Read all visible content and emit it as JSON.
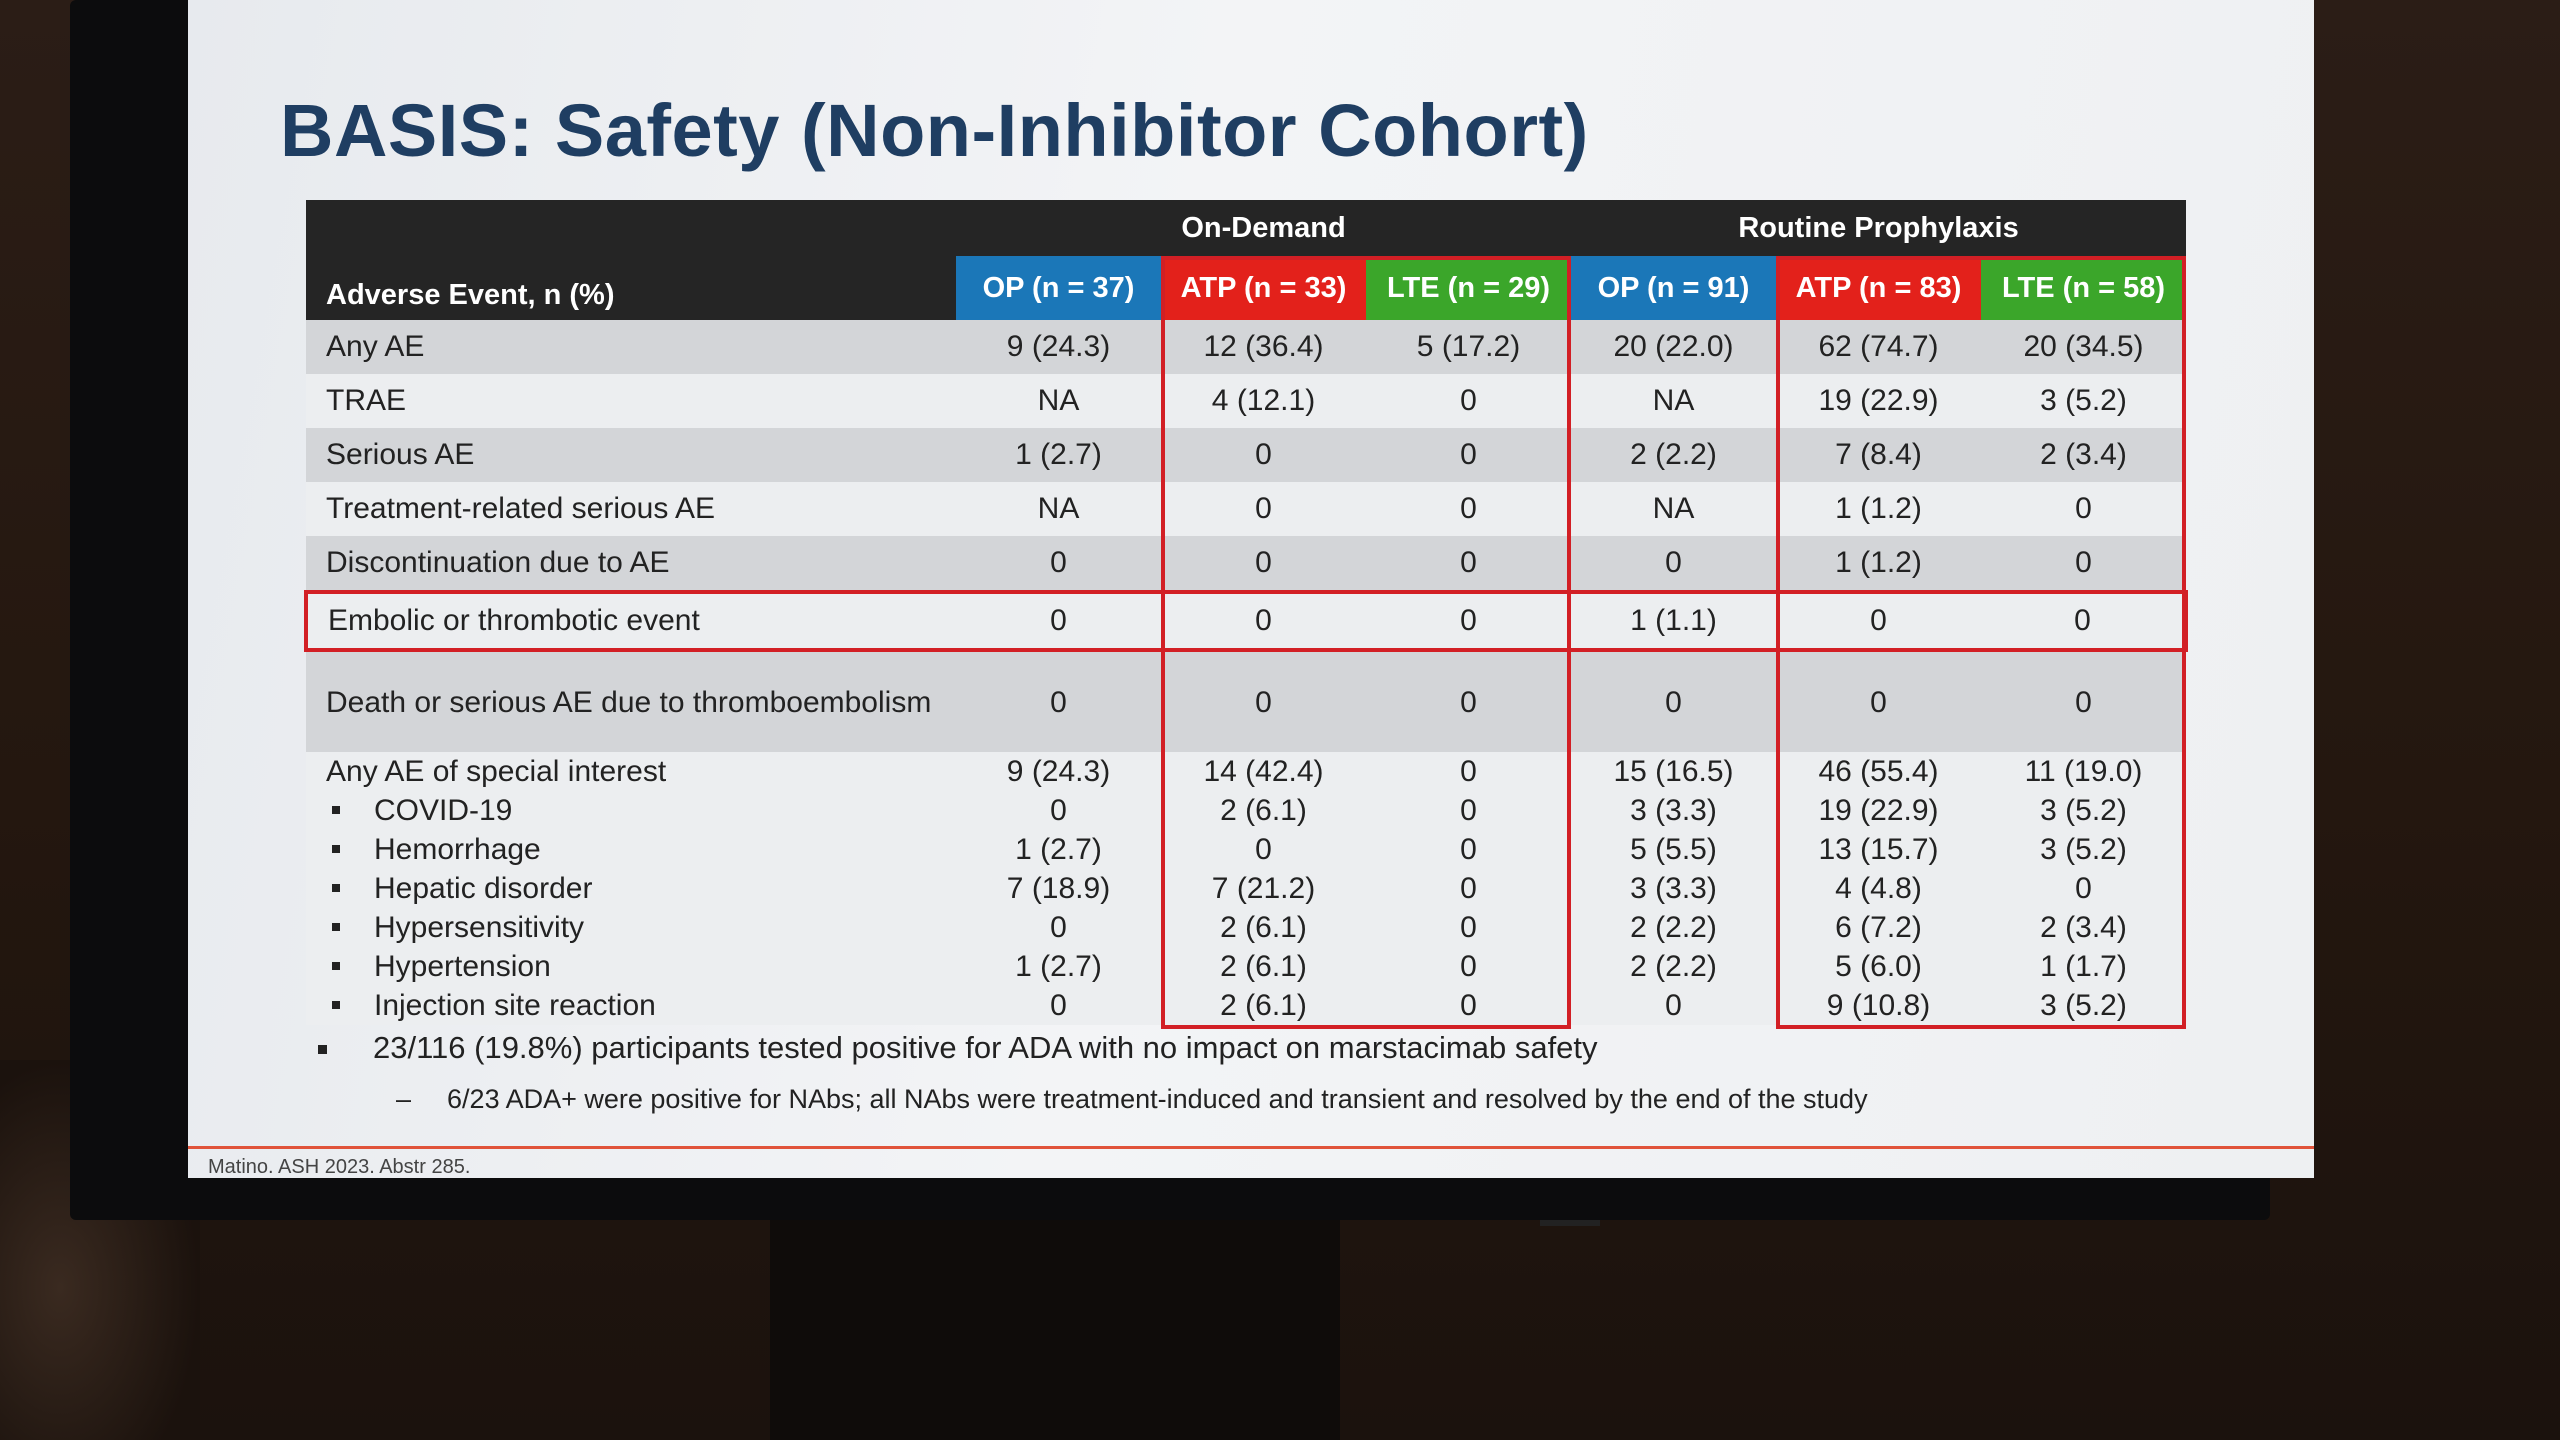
{
  "slide": {
    "title": "BASIS: Safety (Non-Inhibitor Cohort)",
    "table": {
      "group_headers": [
        "On-Demand",
        "Routine Prophylaxis"
      ],
      "row_header": "Adverse Event, n (%)",
      "columns": [
        "OP (n = 37)",
        "ATP (n = 33)",
        "LTE (n = 29)",
        "OP (n = 91)",
        "ATP (n = 83)",
        "LTE (n  = 58)"
      ],
      "rows": [
        {
          "label": "Any AE",
          "values": [
            "9 (24.3)",
            "12 (36.4)",
            "5 (17.2)",
            "20 (22.0)",
            "62 (74.7)",
            "20 (34.5)"
          ]
        },
        {
          "label": "TRAE",
          "values": [
            "NA",
            "4 (12.1)",
            "0",
            "NA",
            "19 (22.9)",
            "3 (5.2)"
          ]
        },
        {
          "label": "Serious AE",
          "values": [
            "1 (2.7)",
            "0",
            "0",
            "2 (2.2)",
            "7 (8.4)",
            "2 (3.4)"
          ]
        },
        {
          "label": "Treatment-related serious AE",
          "values": [
            "NA",
            "0",
            "0",
            "NA",
            "1 (1.2)",
            "0"
          ]
        },
        {
          "label": "Discontinuation due to AE",
          "values": [
            "0",
            "0",
            "0",
            "0",
            "1 (1.2)",
            "0"
          ]
        },
        {
          "label": "Embolic or thrombotic event",
          "values": [
            "0",
            "0",
            "0",
            "1 (1.1)",
            "0",
            "0"
          ]
        },
        {
          "label": "Death or serious AE due to thromboembolism",
          "values": [
            "0",
            "0",
            "0",
            "0",
            "0",
            "0"
          ]
        }
      ],
      "special_interest": {
        "label": "Any AE of special interest",
        "values": [
          "9 (24.3)",
          "14 (42.4)",
          "0",
          "15 (16.5)",
          "46 (55.4)",
          "11 (19.0)"
        ],
        "items": [
          {
            "label": "COVID-19",
            "values": [
              "0",
              "2 (6.1)",
              "0",
              "3 (3.3)",
              "19 (22.9)",
              "3 (5.2)"
            ]
          },
          {
            "label": "Hemorrhage",
            "values": [
              "1 (2.7)",
              "0",
              "0",
              "5 (5.5)",
              "13 (15.7)",
              "3 (5.2)"
            ]
          },
          {
            "label": "Hepatic disorder",
            "values": [
              "7 (18.9)",
              "7 (21.2)",
              "0",
              "3 (3.3)",
              "4 (4.8)",
              "0"
            ]
          },
          {
            "label": "Hypersensitivity",
            "values": [
              "0",
              "2 (6.1)",
              "0",
              "2 (2.2)",
              "6 (7.2)",
              "2 (3.4)"
            ]
          },
          {
            "label": "Hypertension",
            "values": [
              "1 (2.7)",
              "2 (6.1)",
              "0",
              "2 (2.2)",
              "5 (6.0)",
              "1 (1.7)"
            ]
          },
          {
            "label": "Injection site reaction",
            "values": [
              "0",
              "2 (6.1)",
              "0",
              "0",
              "9 (10.8)",
              "3 (5.2)"
            ]
          }
        ]
      }
    },
    "bullets": [
      "23/116 (19.8%) participants tested positive for ADA with no impact on marstacimab safety"
    ],
    "sub_bullets": [
      "6/23 ADA+ were positive for NAbs; all NAbs were treatment-induced and transient and resolved by the end of the study"
    ],
    "citation": "Matino. ASH 2023. Abstr 285.",
    "colors": {
      "title": "#1f3e62",
      "op": "#1b77b8",
      "atp": "#e3211b",
      "lte": "#3ba62a",
      "header_dark": "#252525",
      "highlight_border": "#d21f25"
    }
  }
}
